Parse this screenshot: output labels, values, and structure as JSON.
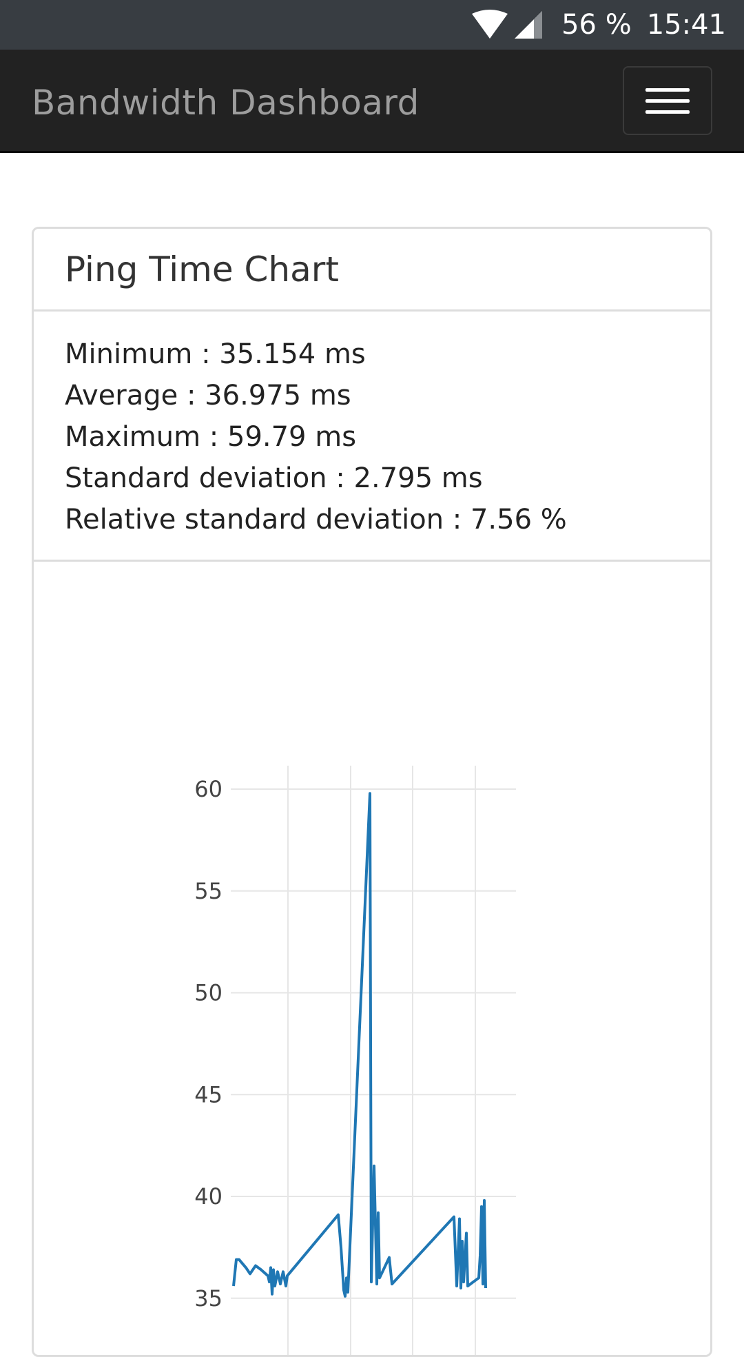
{
  "status_bar": {
    "battery": "56 %",
    "time": "15:41",
    "icons": [
      "wifi-icon",
      "cellular-signal-icon"
    ]
  },
  "navbar": {
    "brand": "Bandwidth Dashboard",
    "menu_icon": "hamburger-menu-icon"
  },
  "panel": {
    "title": "Ping Time Chart",
    "stats": [
      "Minimum : 35.154 ms",
      "Average : 36.975 ms",
      "Maximum : 59.79 ms",
      "Standard deviation : 2.795 ms",
      "Relative standard deviation : 7.56 %"
    ]
  },
  "colors": {
    "navbar": "#222222",
    "status_bar": "#383d42",
    "line": "#1f77b4",
    "grid": "#e6e6e6",
    "border": "#dddddd"
  },
  "chart_data": {
    "type": "line",
    "title": "",
    "xlabel": "",
    "ylabel": "",
    "ylim": [
      35,
      61
    ],
    "y_ticks": [
      "60",
      "55",
      "50",
      "45",
      "40",
      "35"
    ],
    "grid": true,
    "series": [
      {
        "values": [
          35.6,
          36.9,
          36.9,
          36.5,
          36.2,
          36.6,
          36.4,
          36.1,
          35.8,
          36.5,
          35.2,
          36.4,
          35.6,
          36.3,
          35.7,
          36.3,
          35.6,
          36.1,
          39.1,
          37.5,
          35.4,
          35.1,
          36.0,
          35.3,
          59.79,
          35.8,
          41.5,
          35.7,
          39.2,
          36.0,
          37.0,
          35.7,
          39.0,
          35.6,
          38.9,
          35.5,
          37.8,
          35.8,
          38.2,
          35.6,
          36.0,
          37.1,
          39.5,
          35.7,
          39.8,
          35.5
        ]
      }
    ]
  }
}
